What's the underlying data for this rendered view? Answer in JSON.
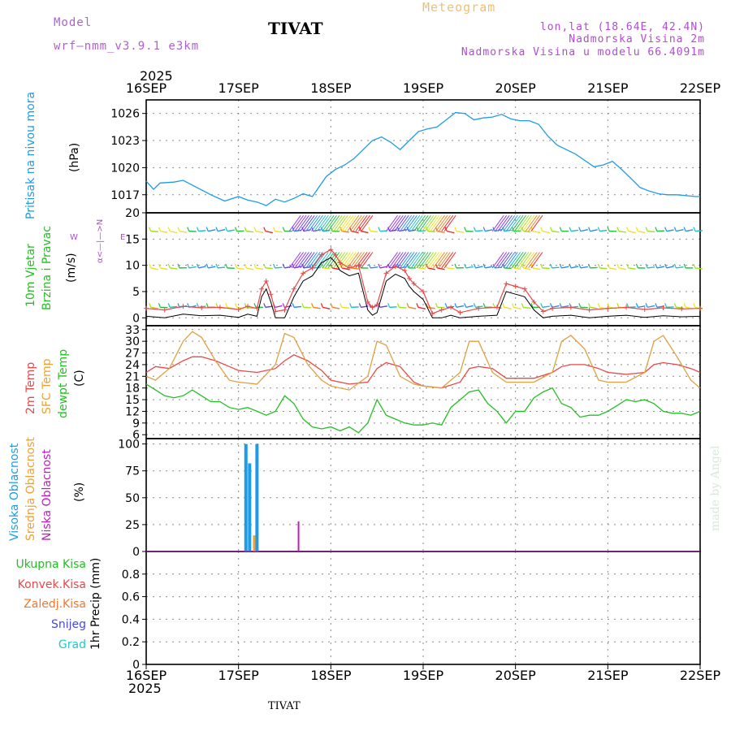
{
  "header": {
    "model_label": "Model",
    "model_name": "wrf—nmm_v3.9.1  e3km",
    "title": "TIVAT",
    "product": "Meteogram",
    "location": "lon,lat (18.64E, 42.4N)",
    "altitude": "Nadmorska Visina 2m",
    "model_altitude": "Nadmorska Visina u modelu 66.4091m"
  },
  "footer": {
    "station": "TIVAT",
    "credit": "made by Angel"
  },
  "colors": {
    "pressure": "#1e9be6",
    "temp2m": "#e84848",
    "sfc": "#e0a040",
    "dewpt": "#22c022",
    "high_cloud": "#1e9be6",
    "mid_cloud": "#f0a030",
    "low_cloud": "#c01cc0",
    "title_purple": "#b060d0",
    "product_orange": "#f0c070",
    "info_purple": "#b04cd0"
  },
  "time_axis": {
    "year": "2025",
    "ticks": [
      "16SEP",
      "17SEP",
      "18SEP",
      "19SEP",
      "20SEP",
      "21SEP",
      "22SEP"
    ]
  },
  "panel_labels": {
    "pressure": {
      "name": "Pritisak na nivou mora",
      "unit": "(hPa)"
    },
    "wind": {
      "name1": "10m Vjetar",
      "name2": "Brzina i Pravac",
      "unit": "(m/s)",
      "compass_ns": "α<—|—>N",
      "compass_w": "W",
      "compass_e": "E"
    },
    "temp": {
      "t2m": "2m Temp",
      "sfc": "SFC Temp",
      "dewpt": "dewpt Temp",
      "unit": "(C)"
    },
    "cloud": {
      "high": "Visoka Oblacnost",
      "mid": "Srednja Oblacnost",
      "low": "Niska Oblacnost",
      "unit": "(%)"
    },
    "precip": {
      "total": "Ukupna Kisa",
      "conv": "Konvek.Kisa",
      "frozen": "Zaledj.Kisa",
      "snow": "Snijeg",
      "hail": "Grad",
      "unit": "1hr Precip (mm)"
    }
  },
  "chart_data": [
    {
      "type": "line",
      "name": "Sea level pressure",
      "x_days": [
        0,
        0.08,
        0.15,
        0.3,
        0.4,
        0.55,
        0.7,
        0.85,
        1.0,
        1.1,
        1.2,
        1.3,
        1.4,
        1.5,
        1.6,
        1.7,
        1.8,
        1.95,
        2.05,
        2.15,
        2.25,
        2.35,
        2.45,
        2.55,
        2.65,
        2.75,
        2.85,
        2.95,
        3.05,
        3.15,
        3.25,
        3.35,
        3.45,
        3.55,
        3.65,
        3.75,
        3.85,
        3.95,
        4.05,
        4.15,
        4.25,
        4.35,
        4.45,
        4.55,
        4.65,
        4.75,
        4.85,
        4.95,
        5.05,
        5.15,
        5.25,
        5.35,
        5.45,
        5.55,
        5.65,
        5.75,
        5.85,
        5.95,
        6.0
      ],
      "values": [
        1018.5,
        1017.6,
        1018.3,
        1018.4,
        1018.6,
        1017.8,
        1017.0,
        1016.3,
        1016.8,
        1016.4,
        1016.2,
        1015.8,
        1016.5,
        1016.2,
        1016.6,
        1017.1,
        1016.8,
        1019.0,
        1019.8,
        1020.3,
        1021.0,
        1022.0,
        1023.0,
        1023.4,
        1022.8,
        1022.0,
        1023.0,
        1024.0,
        1024.3,
        1024.5,
        1025.3,
        1026.1,
        1026.0,
        1025.3,
        1025.5,
        1025.6,
        1025.9,
        1025.4,
        1025.2,
        1025.2,
        1024.8,
        1023.5,
        1022.5,
        1022.0,
        1021.5,
        1020.8,
        1020.1,
        1020.3,
        1020.7,
        1019.8,
        1018.8,
        1017.8,
        1017.4,
        1017.1,
        1017.0,
        1017.0,
        1016.9,
        1016.8,
        1016.8
      ],
      "ylim": [
        1015,
        1027.5
      ],
      "yticks": [
        1017,
        1020,
        1023,
        1026
      ],
      "ylabel": "(hPa)"
    },
    {
      "type": "line",
      "name": "10m wind speed",
      "x_days": [
        0,
        0.2,
        0.4,
        0.6,
        0.8,
        1.0,
        1.1,
        1.2,
        1.25,
        1.3,
        1.35,
        1.4,
        1.5,
        1.6,
        1.7,
        1.8,
        1.9,
        2.0,
        2.05,
        2.1,
        2.2,
        2.3,
        2.4,
        2.45,
        2.5,
        2.6,
        2.7,
        2.8,
        2.85,
        2.9,
        3.0,
        3.1,
        3.2,
        3.3,
        3.4,
        3.6,
        3.8,
        3.9,
        4.0,
        4.1,
        4.2,
        4.3,
        4.4,
        4.6,
        4.8,
        5.0,
        5.2,
        5.4,
        5.6,
        5.8,
        6.0
      ],
      "speed": [
        1.8,
        1.5,
        2.2,
        1.9,
        2.0,
        1.6,
        2.2,
        1.8,
        5.5,
        7.0,
        4.5,
        1.2,
        1.5,
        5.5,
        8.5,
        9.5,
        12.0,
        13.0,
        12.0,
        10.5,
        9.5,
        10.0,
        3.0,
        2.0,
        2.5,
        8.5,
        9.8,
        9.0,
        7.5,
        6.5,
        5.0,
        0.8,
        1.5,
        2.0,
        1.0,
        1.8,
        2.0,
        6.5,
        6.0,
        5.5,
        3.0,
        1.2,
        1.8,
        2.0,
        1.5,
        1.8,
        2.0,
        1.6,
        1.9,
        1.7,
        1.8
      ],
      "barb_rows_ms": [
        16.5,
        9.5,
        2
      ],
      "ylim": [
        -1.5,
        20
      ],
      "yticks": [
        0,
        5,
        10,
        15,
        20
      ],
      "ylabel": "(m/s)"
    },
    {
      "type": "line",
      "name": "Temperatures",
      "ylim": [
        5,
        34
      ],
      "yticks": [
        6,
        9,
        12,
        15,
        18,
        21,
        24,
        27,
        30,
        33
      ],
      "ylabel": "(C)",
      "series": [
        {
          "name": "2m Temp",
          "x_days": [
            0,
            0.1,
            0.25,
            0.4,
            0.5,
            0.6,
            0.75,
            0.9,
            1.0,
            1.2,
            1.4,
            1.5,
            1.6,
            1.75,
            1.9,
            2.0,
            2.2,
            2.4,
            2.5,
            2.6,
            2.75,
            2.9,
            3.0,
            3.2,
            3.4,
            3.5,
            3.6,
            3.75,
            3.9,
            4.0,
            4.2,
            4.4,
            4.5,
            4.6,
            4.75,
            4.9,
            5.0,
            5.2,
            5.4,
            5.5,
            5.6,
            5.75,
            5.9,
            6.0
          ],
          "values": [
            22,
            23.5,
            23,
            25,
            26,
            26,
            25,
            23.5,
            22.5,
            22,
            23,
            25,
            26.5,
            25,
            22.5,
            20,
            19,
            19.5,
            23,
            24.5,
            23.5,
            19.5,
            18.5,
            18,
            19.5,
            23,
            23.5,
            23,
            20.5,
            20.5,
            20.5,
            22,
            23.5,
            24,
            24,
            23,
            22,
            21.5,
            22,
            24,
            24.5,
            24,
            23,
            22
          ]
        },
        {
          "name": "SFC Temp",
          "x_days": [
            0,
            0.1,
            0.25,
            0.4,
            0.5,
            0.6,
            0.75,
            0.9,
            1.0,
            1.2,
            1.4,
            1.5,
            1.6,
            1.75,
            1.9,
            2.0,
            2.2,
            2.4,
            2.5,
            2.6,
            2.75,
            2.9,
            3.0,
            3.2,
            3.4,
            3.5,
            3.6,
            3.75,
            3.9,
            4.0,
            4.2,
            4.4,
            4.5,
            4.6,
            4.75,
            4.9,
            5.0,
            5.2,
            5.4,
            5.5,
            5.6,
            5.75,
            5.9,
            6.0
          ],
          "values": [
            21,
            20,
            23,
            30,
            32.5,
            31,
            25,
            20,
            19.5,
            19,
            24,
            32,
            31,
            24,
            20,
            18.5,
            17.5,
            21,
            30,
            29,
            21,
            19,
            18.5,
            18,
            22,
            30,
            30,
            22,
            19.5,
            19.5,
            19.5,
            22,
            30,
            31.5,
            28,
            20,
            19.5,
            19.5,
            22,
            30,
            31.5,
            26,
            20,
            18
          ]
        },
        {
          "name": "dewpt Temp",
          "x_days": [
            0,
            0.1,
            0.2,
            0.3,
            0.4,
            0.5,
            0.6,
            0.7,
            0.8,
            0.9,
            1.0,
            1.1,
            1.2,
            1.3,
            1.4,
            1.5,
            1.6,
            1.7,
            1.8,
            1.9,
            2.0,
            2.1,
            2.2,
            2.3,
            2.4,
            2.5,
            2.6,
            2.7,
            2.8,
            2.9,
            3.0,
            3.1,
            3.2,
            3.3,
            3.4,
            3.5,
            3.6,
            3.7,
            3.8,
            3.9,
            4.0,
            4.1,
            4.2,
            4.3,
            4.4,
            4.5,
            4.6,
            4.7,
            4.8,
            4.9,
            5.0,
            5.1,
            5.2,
            5.3,
            5.4,
            5.5,
            5.6,
            5.7,
            5.8,
            5.9,
            6.0
          ],
          "values": [
            19,
            17.5,
            16,
            15.5,
            16,
            17.5,
            16,
            14.5,
            14.5,
            13,
            12.5,
            13,
            12,
            11,
            12,
            16,
            14,
            10,
            8,
            7.5,
            8,
            7,
            8,
            6.5,
            9,
            15,
            11,
            10,
            9,
            8.5,
            8.5,
            9,
            8.5,
            13,
            15,
            17,
            17.5,
            14,
            12,
            9,
            12,
            12,
            15.5,
            17,
            18,
            14,
            13,
            10.5,
            11,
            11,
            12,
            13.5,
            15,
            14.5,
            15,
            14,
            12,
            11.5,
            11.5,
            11,
            12
          ]
        }
      ]
    },
    {
      "type": "bar",
      "name": "Cloud cover",
      "ylim": [
        0,
        105
      ],
      "yticks": [
        0,
        25,
        50,
        75,
        100
      ],
      "ylabel": "(%)",
      "series": [
        {
          "name": "Visoka Oblacnost",
          "x_days": [
            1.08,
            1.12,
            1.2
          ],
          "values": [
            100,
            82,
            100
          ]
        },
        {
          "name": "Srednja Oblacnost",
          "x_days": [
            1.17
          ],
          "values": [
            15
          ]
        },
        {
          "name": "Niska Oblacnost",
          "x_days": [
            1.65
          ],
          "values": [
            28
          ]
        }
      ]
    },
    {
      "type": "bar",
      "name": "1hr Precip",
      "ylim": [
        0,
        1
      ],
      "yticks": [
        0,
        0.2,
        0.4,
        0.6,
        0.8
      ],
      "ylabel": "1hr Precip (mm)",
      "series": []
    }
  ]
}
